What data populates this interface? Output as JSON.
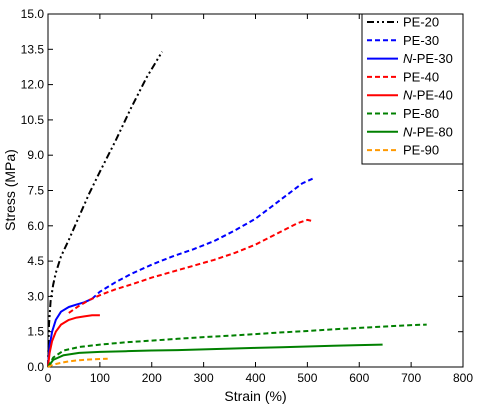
{
  "chart_data": {
    "type": "line",
    "title": "",
    "xlabel": "Strain (%)",
    "ylabel": "Stress (MPa)",
    "xlim": [
      0,
      800
    ],
    "ylim": [
      0,
      15
    ],
    "xticks": [
      0,
      100,
      200,
      300,
      400,
      500,
      600,
      700,
      800
    ],
    "yticks": [
      0.0,
      1.5,
      3.0,
      4.5,
      6.0,
      7.5,
      9.0,
      10.5,
      12.0,
      13.5,
      15.0
    ],
    "ytick_labels": [
      "0.0",
      "1.5",
      "3.0",
      "4.5",
      "6.0",
      "7.5",
      "9.0",
      "10.5",
      "12.0",
      "13.5",
      "15.0"
    ],
    "grid": false,
    "legend_position": "top-right",
    "series": [
      {
        "name": "PE-20",
        "name_prefix": "",
        "name_suffix": "PE-20",
        "color": "#000000",
        "dash": "dashdotdot",
        "x": [
          0,
          2,
          5,
          10,
          15,
          25,
          40,
          60,
          80,
          100,
          130,
          160,
          190,
          220
        ],
        "y": [
          0,
          1.8,
          2.8,
          3.5,
          4.0,
          4.7,
          5.4,
          6.4,
          7.4,
          8.3,
          9.6,
          11.0,
          12.3,
          13.4
        ]
      },
      {
        "name": "PE-30",
        "name_prefix": "",
        "name_suffix": "PE-30",
        "color": "#0000ff",
        "dash": "dash",
        "x": [
          85,
          100,
          130,
          160,
          200,
          240,
          280,
          320,
          360,
          400,
          430,
          460,
          490,
          510
        ],
        "y": [
          2.9,
          3.2,
          3.6,
          3.95,
          4.35,
          4.7,
          5.0,
          5.35,
          5.8,
          6.3,
          6.8,
          7.3,
          7.8,
          8.0
        ]
      },
      {
        "name": "N-PE-30",
        "name_prefix": "N",
        "name_suffix": "-PE-30",
        "color": "#0000ff",
        "dash": "solid",
        "x": [
          0,
          3,
          8,
          15,
          25,
          40,
          55,
          70,
          85
        ],
        "y": [
          0,
          0.9,
          1.5,
          2.0,
          2.35,
          2.55,
          2.65,
          2.75,
          2.9
        ]
      },
      {
        "name": "PE-40",
        "name_prefix": "",
        "name_suffix": "PE-40",
        "color": "#ff0000",
        "dash": "dash",
        "x": [
          40,
          60,
          80,
          100,
          130,
          160,
          200,
          240,
          280,
          320,
          360,
          400,
          440,
          480,
          500,
          510
        ],
        "y": [
          2.3,
          2.6,
          2.85,
          3.05,
          3.3,
          3.5,
          3.8,
          4.05,
          4.3,
          4.55,
          4.85,
          5.2,
          5.65,
          6.1,
          6.25,
          6.2
        ]
      },
      {
        "name": "N-PE-40",
        "name_prefix": "N",
        "name_suffix": "-PE-40",
        "color": "#ff0000",
        "dash": "solid",
        "x": [
          0,
          3,
          8,
          15,
          25,
          40,
          55,
          70,
          85,
          100
        ],
        "y": [
          0,
          0.6,
          1.1,
          1.5,
          1.8,
          2.0,
          2.1,
          2.15,
          2.2,
          2.2
        ]
      },
      {
        "name": "PE-80",
        "name_prefix": "",
        "name_suffix": "PE-80",
        "color": "#008000",
        "dash": "dash",
        "x": [
          0,
          10,
          30,
          60,
          100,
          150,
          200,
          250,
          300,
          350,
          400,
          450,
          500,
          550,
          600,
          650,
          700,
          730
        ],
        "y": [
          0,
          0.4,
          0.7,
          0.85,
          0.95,
          1.05,
          1.12,
          1.2,
          1.27,
          1.33,
          1.4,
          1.47,
          1.53,
          1.6,
          1.66,
          1.72,
          1.78,
          1.8
        ]
      },
      {
        "name": "N-PE-80",
        "name_prefix": "N",
        "name_suffix": "-PE-80",
        "color": "#008000",
        "dash": "solid",
        "x": [
          0,
          10,
          30,
          60,
          100,
          150,
          200,
          250,
          300,
          350,
          400,
          450,
          500,
          550,
          600,
          645
        ],
        "y": [
          0,
          0.3,
          0.5,
          0.6,
          0.64,
          0.67,
          0.7,
          0.72,
          0.75,
          0.78,
          0.81,
          0.84,
          0.87,
          0.9,
          0.93,
          0.95
        ]
      },
      {
        "name": "PE-90",
        "name_prefix": "",
        "name_suffix": "PE-90",
        "color": "#ff9900",
        "dash": "dash",
        "x": [
          0,
          10,
          25,
          40,
          60,
          80,
          100,
          115
        ],
        "y": [
          0,
          0.1,
          0.18,
          0.24,
          0.29,
          0.32,
          0.34,
          0.35
        ]
      }
    ]
  }
}
